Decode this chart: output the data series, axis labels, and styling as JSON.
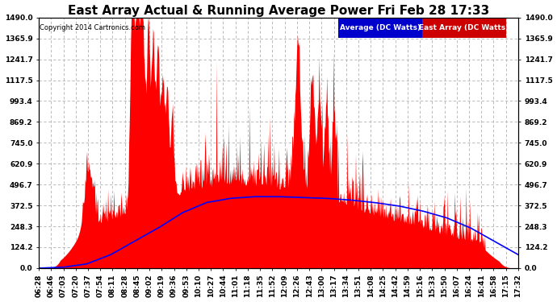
{
  "title": "East Array Actual & Running Average Power Fri Feb 28 17:33",
  "copyright": "Copyright 2014 Cartronics.com",
  "legend_labels": [
    "Average (DC Watts)",
    "East Array (DC Watts)"
  ],
  "legend_bg_colors": [
    "#0000cc",
    "#cc0000"
  ],
  "ymin": 0.0,
  "ymax": 1490.0,
  "yticks": [
    0.0,
    124.2,
    248.3,
    372.5,
    496.7,
    620.9,
    745.0,
    869.2,
    993.4,
    1117.5,
    1241.7,
    1365.9,
    1490.0
  ],
  "background_color": "#ffffff",
  "grid_color": "#b0b0b0",
  "fill_color": "#ff0000",
  "avg_line_color": "#0000ff",
  "title_fontsize": 11,
  "tick_fontsize": 6.5,
  "xtick_labels": [
    "06:28",
    "06:46",
    "07:03",
    "07:20",
    "07:37",
    "07:54",
    "08:11",
    "08:28",
    "08:45",
    "09:02",
    "09:19",
    "09:36",
    "09:53",
    "10:10",
    "10:27",
    "10:44",
    "11:01",
    "11:18",
    "11:35",
    "11:52",
    "12:09",
    "12:26",
    "12:43",
    "13:00",
    "13:17",
    "13:34",
    "13:51",
    "14:08",
    "14:25",
    "14:42",
    "14:59",
    "15:16",
    "15:33",
    "15:50",
    "16:07",
    "16:24",
    "16:41",
    "16:58",
    "17:15",
    "17:32"
  ],
  "num_points": 800,
  "seed": 12345
}
